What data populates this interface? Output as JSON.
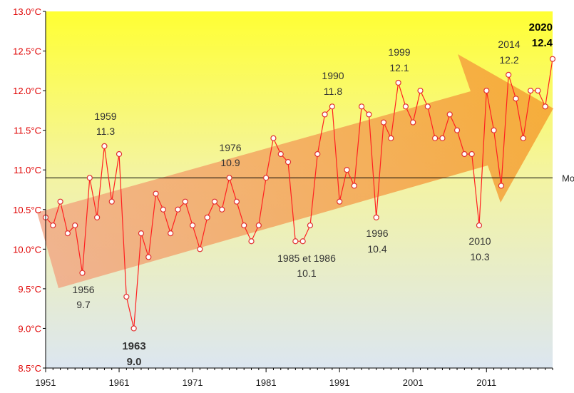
{
  "chart_data": {
    "type": "line",
    "title": "",
    "xlabel": "",
    "ylabel": "",
    "ylim": [
      8.5,
      13.0
    ],
    "xlim": [
      1951,
      2020
    ],
    "grid": false,
    "colors": {
      "line": "#ff2020",
      "marker_fill": "#ffffff",
      "marker_edge": "#e03030",
      "axis_ticks": "#e00000",
      "mean_line": "#000000",
      "trend_arrow": "#f08a3a",
      "bg_top": "#ffff33",
      "bg_bottom": "#dce6f0"
    },
    "yticks": [
      "8.5°C",
      "9.0°C",
      "9.5°C",
      "10.0°C",
      "10.5°C",
      "11.0°C",
      "11.5°C",
      "12.0°C",
      "12.5°C",
      "13.0°C"
    ],
    "ytick_values": [
      8.5,
      9.0,
      9.5,
      10.0,
      10.5,
      11.0,
      11.5,
      12.0,
      12.5,
      13.0
    ],
    "xticks": [
      "1951",
      "1961",
      "1971",
      "1981",
      "1991",
      "2001",
      "2011"
    ],
    "xtick_values": [
      1951,
      1961,
      1971,
      1981,
      1991,
      2001,
      2011
    ],
    "mean_line": {
      "value": 10.9,
      "label": "Mo"
    },
    "series": [
      {
        "x": [
          1951,
          1952,
          1953,
          1954,
          1955,
          1956,
          1957,
          1958,
          1959,
          1960,
          1961,
          1962,
          1963,
          1964,
          1965,
          1966,
          1967,
          1968,
          1969,
          1970,
          1971,
          1972,
          1973,
          1974,
          1975,
          1976,
          1977,
          1978,
          1979,
          1980,
          1981,
          1982,
          1983,
          1984,
          1985,
          1986,
          1987,
          1988,
          1989,
          1990,
          1991,
          1992,
          1993,
          1994,
          1995,
          1996,
          1997,
          1998,
          1999,
          2000,
          2001,
          2002,
          2003,
          2004,
          2005,
          2006,
          2007,
          2008,
          2009,
          2010,
          2011,
          2012,
          2013,
          2014,
          2015,
          2016,
          2017,
          2018,
          2019,
          2020
        ],
        "values": [
          10.4,
          10.3,
          10.6,
          10.2,
          10.3,
          9.7,
          10.9,
          10.4,
          11.3,
          10.6,
          11.2,
          9.4,
          9.0,
          10.2,
          9.9,
          10.7,
          10.5,
          10.2,
          10.5,
          10.6,
          10.3,
          10.0,
          10.4,
          10.6,
          10.5,
          10.9,
          10.6,
          10.3,
          10.1,
          10.3,
          10.9,
          11.4,
          11.2,
          11.1,
          10.1,
          10.1,
          10.3,
          11.2,
          11.7,
          11.8,
          10.6,
          11.0,
          10.8,
          11.8,
          11.7,
          10.4,
          11.6,
          11.4,
          12.1,
          11.8,
          11.6,
          12.0,
          11.8,
          11.4,
          11.4,
          11.7,
          11.5,
          11.2,
          11.2,
          10.3,
          12.0,
          11.5,
          10.8,
          12.2,
          11.9,
          11.4,
          12.0,
          12.0,
          11.8,
          12.4
        ]
      }
    ],
    "annotations": [
      {
        "year_label": "1956",
        "value_label": "9.7",
        "style": "normal"
      },
      {
        "year_label": "1959",
        "value_label": "11.3",
        "style": "normal"
      },
      {
        "year_label": "1963",
        "value_label": "9.0",
        "style": "bold"
      },
      {
        "year_label": "1976",
        "value_label": "10.9",
        "style": "normal"
      },
      {
        "year_label": "1985  et 1986",
        "value_label": "10.1",
        "style": "normal"
      },
      {
        "year_label": "1990",
        "value_label": "11.8",
        "style": "normal"
      },
      {
        "year_label": "1996",
        "value_label": "10.4",
        "style": "normal"
      },
      {
        "year_label": "1999",
        "value_label": "12.1",
        "style": "normal"
      },
      {
        "year_label": "2010",
        "value_label": "10.3",
        "style": "normal"
      },
      {
        "year_label": "2014",
        "value_label": "12.2",
        "style": "normal"
      },
      {
        "year_label": "2020",
        "value_label": "12.4",
        "style": "black"
      }
    ]
  }
}
